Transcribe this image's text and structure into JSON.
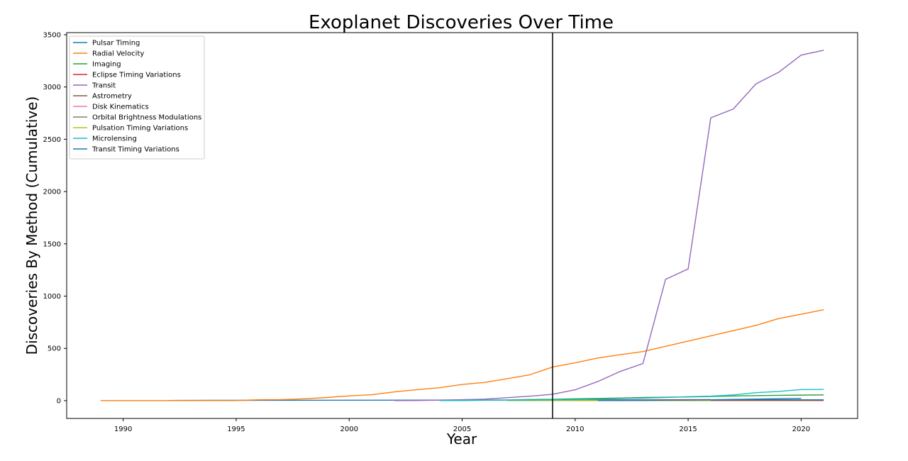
{
  "chart_data": {
    "type": "line",
    "title": "Exoplanet Discoveries Over Time",
    "xlabel": "Year",
    "ylabel": "Discoveries By Method (Cumulative)",
    "xlim": [
      1987.5,
      2022.5
    ],
    "ylim": [
      -170,
      3520
    ],
    "xticks": [
      1990,
      1995,
      2000,
      2005,
      2010,
      2015,
      2020
    ],
    "yticks": [
      0,
      500,
      1000,
      1500,
      2000,
      2500,
      3000,
      3500
    ],
    "grid": false,
    "legend_position": "top-left",
    "vline_x": 2009,
    "vline_color": "#000000",
    "series": [
      {
        "name": "Pulsar Timing",
        "color": "#1f77b4",
        "x": [
          1992,
          1994,
          2000,
          2003,
          2005,
          2011,
          2018,
          2021
        ],
        "y": [
          2,
          3,
          4,
          5,
          6,
          7,
          8,
          8
        ]
      },
      {
        "name": "Radial Velocity",
        "color": "#ff7f0e",
        "x": [
          1989,
          1992,
          1995,
          1996,
          1997,
          1998,
          1999,
          2000,
          2001,
          2002,
          2003,
          2004,
          2005,
          2006,
          2007,
          2008,
          2009,
          2010,
          2011,
          2012,
          2013,
          2014,
          2015,
          2016,
          2017,
          2018,
          2019,
          2020,
          2021
        ],
        "y": [
          1,
          1,
          2,
          8,
          10,
          18,
          30,
          46,
          57,
          84,
          105,
          124,
          155,
          175,
          210,
          248,
          322,
          362,
          408,
          440,
          470,
          520,
          570,
          620,
          670,
          720,
          785,
          827,
          870
        ]
      },
      {
        "name": "Imaging",
        "color": "#2ca02c",
        "x": [
          2004,
          2005,
          2006,
          2007,
          2008,
          2009,
          2010,
          2011,
          2012,
          2013,
          2014,
          2015,
          2016,
          2017,
          2018,
          2019,
          2020,
          2021
        ],
        "y": [
          1,
          2,
          4,
          6,
          11,
          13,
          18,
          21,
          25,
          30,
          33,
          36,
          40,
          45,
          48,
          51,
          53,
          55
        ]
      },
      {
        "name": "Eclipse Timing Variations",
        "color": "#d62728",
        "x": [
          2008,
          2009,
          2010,
          2011,
          2012,
          2013,
          2014,
          2015,
          2016
        ],
        "y": [
          1,
          2,
          3,
          4,
          5,
          7,
          8,
          9,
          10
        ]
      },
      {
        "name": "Transit",
        "color": "#9467bd",
        "x": [
          2002,
          2003,
          2004,
          2005,
          2006,
          2007,
          2008,
          2009,
          2010,
          2011,
          2012,
          2013,
          2014,
          2015,
          2016,
          2017,
          2018,
          2019,
          2020,
          2021
        ],
        "y": [
          1,
          2,
          5,
          9,
          14,
          29,
          43,
          61,
          104,
          183,
          280,
          355,
          1160,
          1260,
          2705,
          2790,
          3030,
          3140,
          3305,
          3352
        ]
      },
      {
        "name": "Astrometry",
        "color": "#8c564b",
        "x": [
          2010,
          2013,
          2019,
          2021
        ],
        "y": [
          1,
          1,
          2,
          2
        ]
      },
      {
        "name": "Disk Kinematics",
        "color": "#e377c2",
        "x": [
          2019
        ],
        "y": [
          1
        ]
      },
      {
        "name": "Orbital Brightness Modulations",
        "color": "#7f7f7f",
        "x": [
          2011,
          2013,
          2016
        ],
        "y": [
          1,
          4,
          6
        ]
      },
      {
        "name": "Pulsation Timing Variations",
        "color": "#bcbd22",
        "x": [
          2007,
          2016
        ],
        "y": [
          1,
          2
        ]
      },
      {
        "name": "Microlensing",
        "color": "#17becf",
        "x": [
          2004,
          2005,
          2006,
          2007,
          2008,
          2009,
          2010,
          2011,
          2012,
          2013,
          2014,
          2015,
          2016,
          2017,
          2018,
          2019,
          2020,
          2021
        ],
        "y": [
          1,
          3,
          4,
          4,
          6,
          8,
          10,
          13,
          20,
          24,
          30,
          38,
          43,
          55,
          76,
          88,
          106,
          108
        ]
      },
      {
        "name": "Transit Timing Variations",
        "color": "#1f77b4",
        "x": [
          2011,
          2012,
          2013,
          2014,
          2015,
          2016,
          2017,
          2018,
          2019,
          2020
        ],
        "y": [
          1,
          2,
          3,
          5,
          6,
          8,
          12,
          15,
          19,
          22
        ]
      }
    ]
  }
}
